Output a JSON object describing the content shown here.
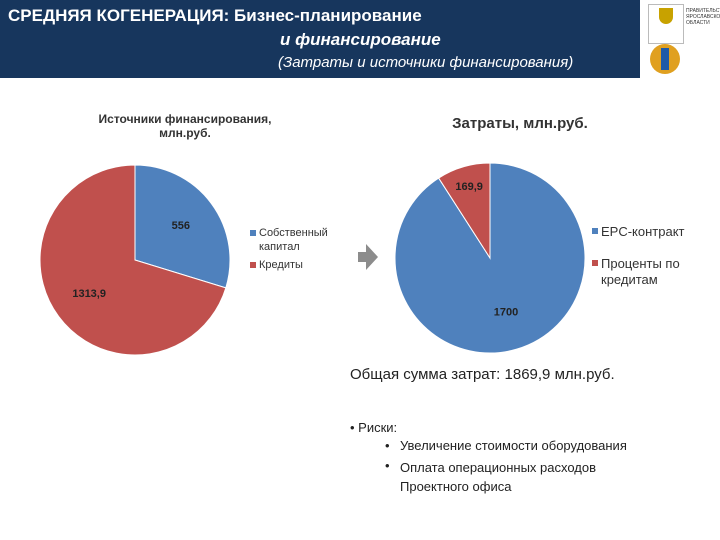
{
  "header": {
    "title_lines": [
      "СРЕДНЯЯ КОГЕНЕРАЦИЯ: Бизнес-планирование",
      "и финансирование",
      "(Затраты и источники финансирования)"
    ],
    "logo_text": "ПРАВИТЕЛЬСТВО ЯРОСЛАВСКОЙ ОБЛАСТИ"
  },
  "chart_data": [
    {
      "type": "pie",
      "title": "Источники финансирования, млн.руб.",
      "categories": [
        "Собственный капитал",
        "Кредиты"
      ],
      "values": [
        556,
        1313.9
      ],
      "value_labels": [
        "556",
        "1313,9"
      ],
      "colors": [
        "#4f81bd",
        "#c0504d"
      ]
    },
    {
      "type": "pie",
      "title": "Затраты, млн.руб.",
      "categories": [
        "EPC-контракт",
        "Проценты по кредитам"
      ],
      "values": [
        1700,
        169.9
      ],
      "value_labels": [
        "1700",
        "169,9"
      ],
      "colors": [
        "#4f81bd",
        "#c0504d"
      ]
    }
  ],
  "total": "Общая сумма затрат: 1869,9 млн.руб.",
  "risks": {
    "heading": "Риски:",
    "items": [
      "Увеличение стоимости оборудования",
      "Оплата операционных расходов Проектного офиса"
    ]
  }
}
